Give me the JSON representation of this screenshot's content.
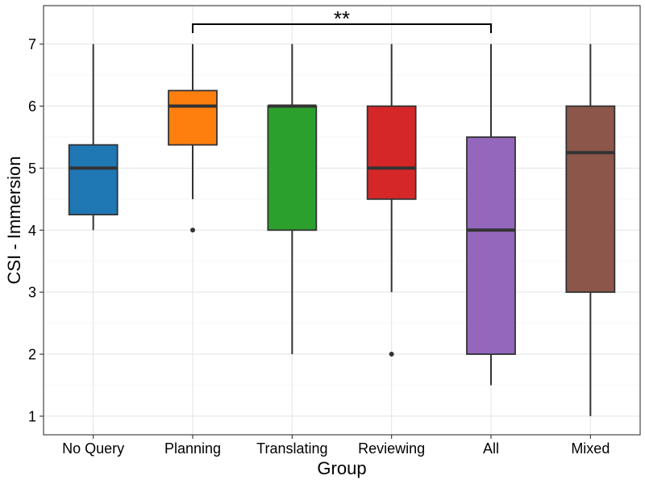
{
  "chart_data": {
    "type": "boxplot",
    "title": "",
    "xlabel": "Group",
    "ylabel": "CSI - Immersion",
    "ylim": [
      0.7,
      7.62
    ],
    "yticks": [
      1,
      2,
      3,
      4,
      5,
      6,
      7
    ],
    "grid": true,
    "categories": [
      "No Query",
      "Planning",
      "Translating",
      "Reviewing",
      "All",
      "Mixed"
    ],
    "boxes": [
      {
        "name": "No Query",
        "color": "#1f77b4",
        "whisker_low": 4.0,
        "q1": 4.25,
        "median": 5.0,
        "q3": 5.375,
        "whisker_high": 7.0,
        "outliers": []
      },
      {
        "name": "Planning",
        "color": "#ff7f0e",
        "whisker_low": 4.5,
        "q1": 5.375,
        "median": 6.0,
        "q3": 6.25,
        "whisker_high": 7.0,
        "outliers": [
          4.0
        ]
      },
      {
        "name": "Translating",
        "color": "#2ca02c",
        "whisker_low": 2.0,
        "q1": 4.0,
        "median": 6.0,
        "q3": 6.0,
        "whisker_high": 7.0,
        "outliers": []
      },
      {
        "name": "Reviewing",
        "color": "#d62728",
        "whisker_low": 3.0,
        "q1": 4.5,
        "median": 5.0,
        "q3": 6.0,
        "whisker_high": 7.0,
        "outliers": [
          2.0
        ]
      },
      {
        "name": "All",
        "color": "#9467bd",
        "whisker_low": 1.5,
        "q1": 2.0,
        "median": 4.0,
        "q3": 5.5,
        "whisker_high": 7.0,
        "outliers": []
      },
      {
        "name": "Mixed",
        "color": "#8c564b",
        "whisker_low": 1.0,
        "q1": 3.0,
        "median": 5.25,
        "q3": 6.0,
        "whisker_high": 7.0,
        "outliers": []
      }
    ],
    "annotations": [
      {
        "type": "significance-bracket",
        "from": "Planning",
        "to": "All",
        "label": "**"
      }
    ]
  }
}
